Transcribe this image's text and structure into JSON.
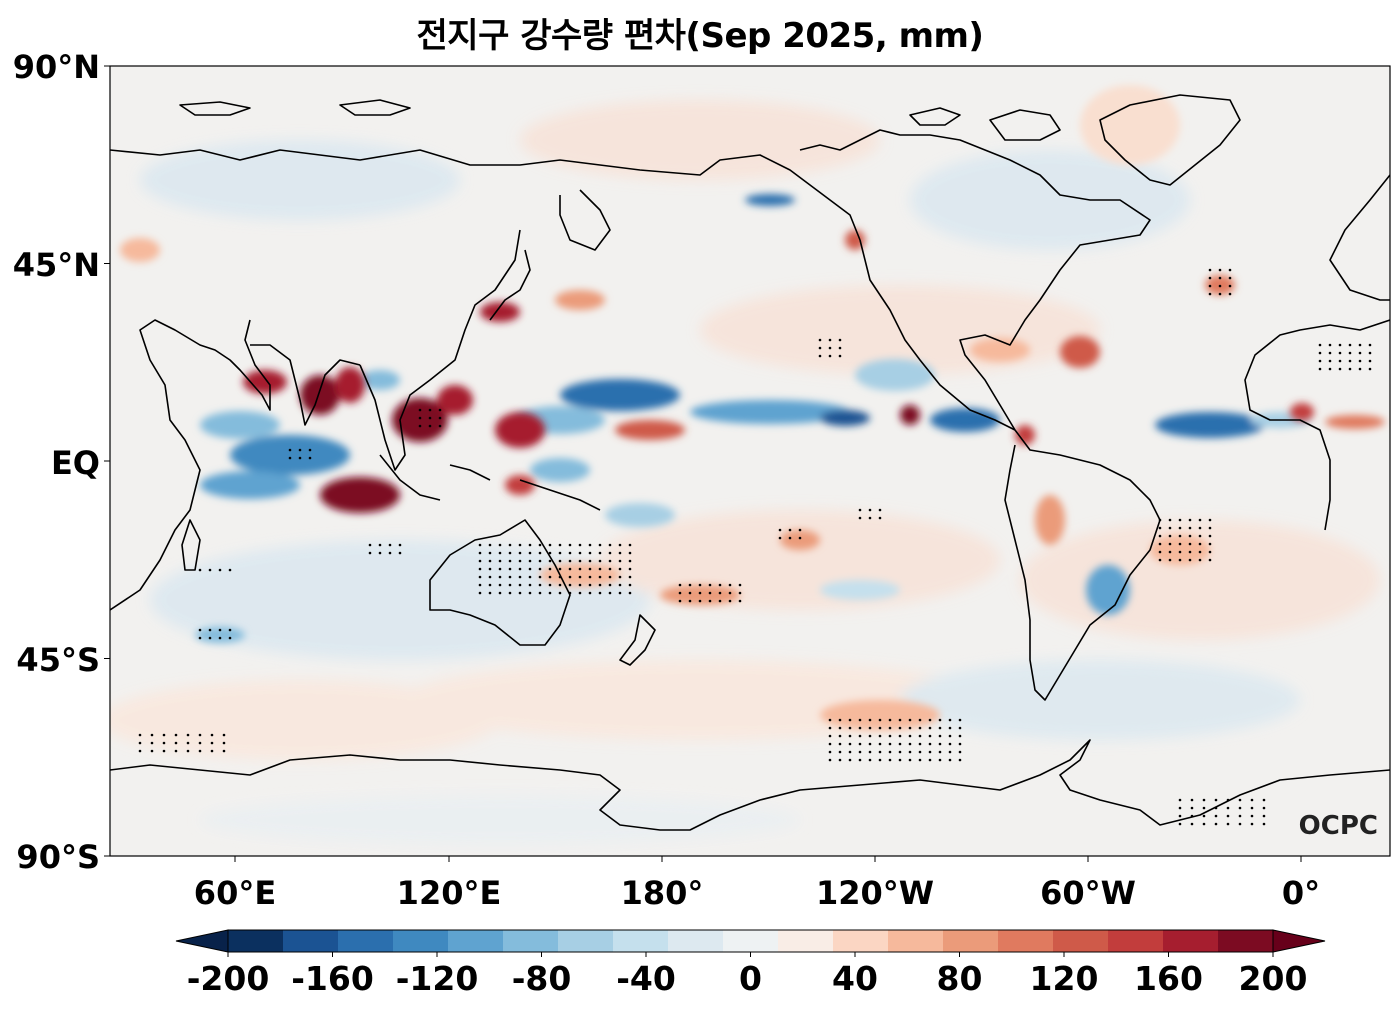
{
  "title": "전지구 강수량 편차(Sep 2025, mm)",
  "logo_text": "OCPC",
  "lat_ticks": [
    "90°N",
    "45°N",
    "EQ",
    "45°S",
    "90°S"
  ],
  "lon_ticks": [
    "60°E",
    "120°E",
    "180°",
    "120°W",
    "60°W",
    "0°"
  ],
  "colorbar": {
    "tick_labels": [
      "-200",
      "-160",
      "-120",
      "-80",
      "-40",
      "0",
      "40",
      "80",
      "120",
      "160",
      "200"
    ],
    "colors": [
      "#0b305f",
      "#1b5393",
      "#2b6fae",
      "#3f89c0",
      "#5fa3d0",
      "#84bcdc",
      "#a7cfe4",
      "#c5e0ed",
      "#dde9f0",
      "#eef2f3",
      "#f9ede6",
      "#fbd6c3",
      "#f6b99c",
      "#eb9b7a",
      "#e07a5f",
      "#cf5a49",
      "#c23d3c",
      "#a61e2f",
      "#7c0b22"
    ]
  },
  "colors": {
    "land_line": "#000000",
    "background_field": "#f3f1ef"
  }
}
